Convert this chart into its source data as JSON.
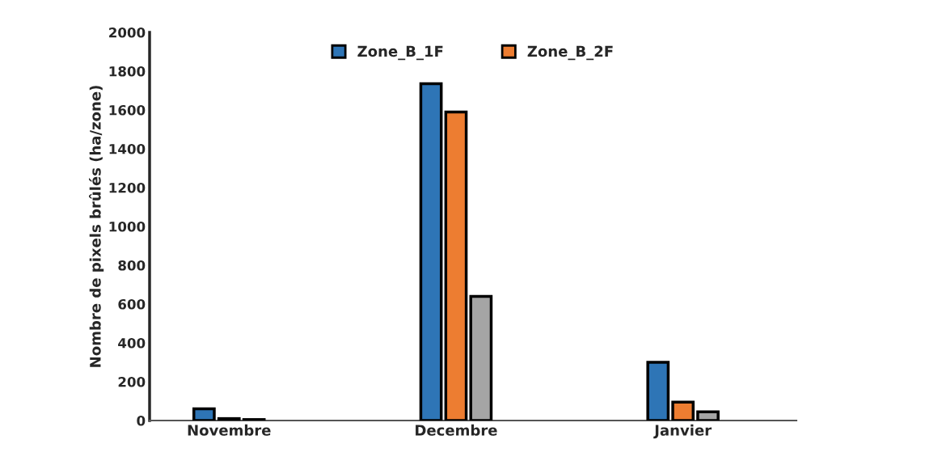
{
  "chart_data": {
    "type": "bar",
    "ylabel": "Nombre de pixels brûlés (ha/zone)",
    "categories": [
      "Novembre",
      "Decembre",
      "Janvier"
    ],
    "series": [
      {
        "name": "Zone_B_1F",
        "color": "#2e75b6",
        "values": [
          60,
          1735,
          300
        ]
      },
      {
        "name": "Zone_B_2F",
        "color": "#ed7d31",
        "values": [
          10,
          1590,
          95
        ]
      },
      {
        "color": "#a5a5a5",
        "values": [
          5,
          640,
          45
        ]
      }
    ],
    "ylim": [
      0,
      2000
    ],
    "yticks": [
      0,
      200,
      400,
      600,
      800,
      1000,
      1200,
      1400,
      1600,
      1800,
      2000
    ],
    "grid": false,
    "legend": "top"
  }
}
